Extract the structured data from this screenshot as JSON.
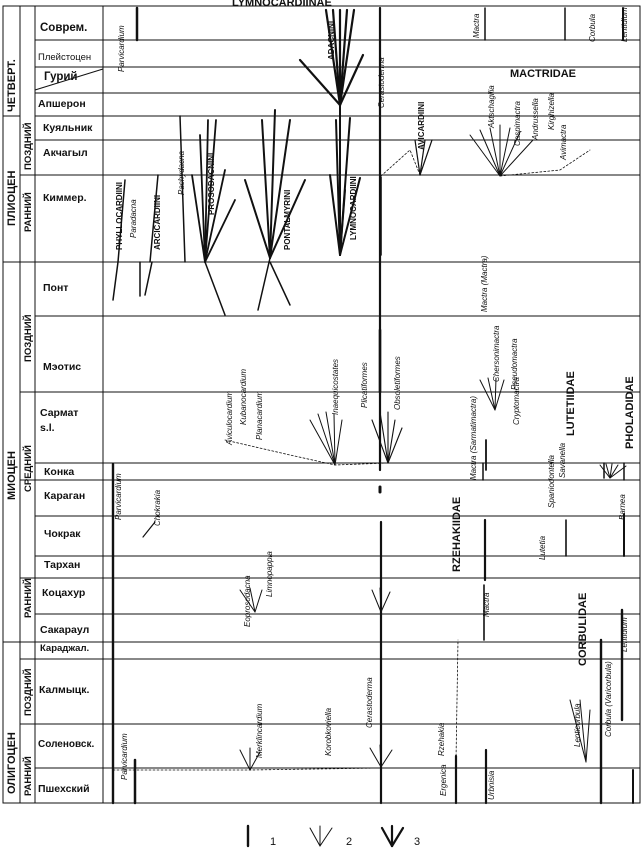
{
  "header": {
    "title": "LYMNOCARDIINAE"
  },
  "era": {
    "chetvert": "ЧЕТВЕРТ.",
    "pliocen": "ПЛИОЦЕН",
    "miocen": "МИОЦЕН",
    "oligocen": "ОЛИГОЦЕН"
  },
  "subdivisions": {
    "pl_pozdniy": "ПОЗДНИЙ",
    "pl_ranniy": "РАННИЙ",
    "mi_pozdniy": "ПОЗДНИЙ",
    "mi_sredniy": "СРЕДНИЙ",
    "mi_ranniy": "РАННИЙ",
    "ol_pozdniy": "ПОЗДНИЙ",
    "ol_ranniy": "РАННИЙ"
  },
  "stages": {
    "sovrem": "Соврем.",
    "pleistocen": "Плейстоцен",
    "guriy": "Гурий",
    "apsheron": "Апшерон",
    "kuyalnik": "Куяльник",
    "akchagyl": "Акчагыл",
    "kimmer": "Киммер.",
    "pont": "Понт",
    "meotis": "Мэотис",
    "sarmat_1": "Сармат",
    "sarmat_2": "s.l.",
    "konka": "Конка",
    "karagan": "Караган",
    "chokrak": "Чокрак",
    "tarkhan": "Тархан",
    "kotsakhur": "Коцахур",
    "sakaraul": "Сакараул",
    "karadzhal": "Караджал.",
    "kalmyck": "Калмыцк.",
    "solenovsk": "Соленовск.",
    "pshekhsky": "Пшехский"
  },
  "families": {
    "mactridae": "MACTRIDAE",
    "lutetiidae": "LUTETIIDAE",
    "pholadidae": "PHOLADIDAE",
    "rzehakiidae": "RZEHAKIIDAE",
    "corbulidae": "CORBULIDAE"
  },
  "taxa": {
    "parvicardium_top": "Parvicardium",
    "adacnini": "ADACNINI",
    "cerastoderma_top": "Cerastoderma",
    "mactra_top": "Mactra",
    "corbula": "Corbula",
    "lentidium_top": "Lentidium",
    "avicardiini": "AVICARDIINI",
    "aktschagilia": "Aktschagilia",
    "caspimactra": "Caspimactra",
    "andrussella": "Andrussella",
    "kirghizella": "Kirghizella",
    "avimactra": "Avimactra",
    "phyllocardiini": "PHYLLOCARDIINI",
    "paradacna": "Paradacna",
    "arcicardiini": "ARCICARDIINI",
    "pachydacna": "Pachydacna",
    "prosodacnini": "PROSODACNINI",
    "pontalmyrini": "PONTALMYRINI",
    "lymnocardiini": "LYMNOCARDIINI",
    "mactra_mactra": "Mactra (Mactra)",
    "chersonimactra": "Chersonimactra",
    "pseudomactra": "Pseudomactra",
    "cryptomactra": "Cryptomactra",
    "aviculocardium": "Aviculocardium",
    "kubanocardium": "Kubanocardium",
    "planacardium": "Planacardium",
    "inaequicostates": "Inaequicostates",
    "plicatiformes": "Plicatiformes",
    "obsoletiformes": "Obsoletiformes",
    "mactra_sarmatimactra": "Mactra (Sarmatimactra)",
    "spaniodontella": "Spaniodontella",
    "savanella": "Savanella",
    "barnea": "Barnea",
    "parvicardium_mid": "Parvicardium",
    "chokrakia": "Chokrakia",
    "lutetia": "Lutetia",
    "eoprosodacna": "Eoprosodacna",
    "limnopappia": "Limnopappia",
    "mactra_low": "Mactra",
    "lenticorbula": "Lenticorbula",
    "corbula_varicorbula": "Corbula (Varicorbula)",
    "lentidium_low": "Lentidium",
    "merklincardium": "Merklincardium",
    "korobkoviella": "Korobkoviella",
    "cerastoderma_low": "Cerastoderma",
    "rzehakia": "Rzehakia",
    "ergenica": "Ergenica",
    "urbnisia": "Urbnisia",
    "parvicardium_low": "Parvicardium"
  },
  "legend": {
    "n1": "1",
    "n2": "2",
    "n3": "3"
  }
}
